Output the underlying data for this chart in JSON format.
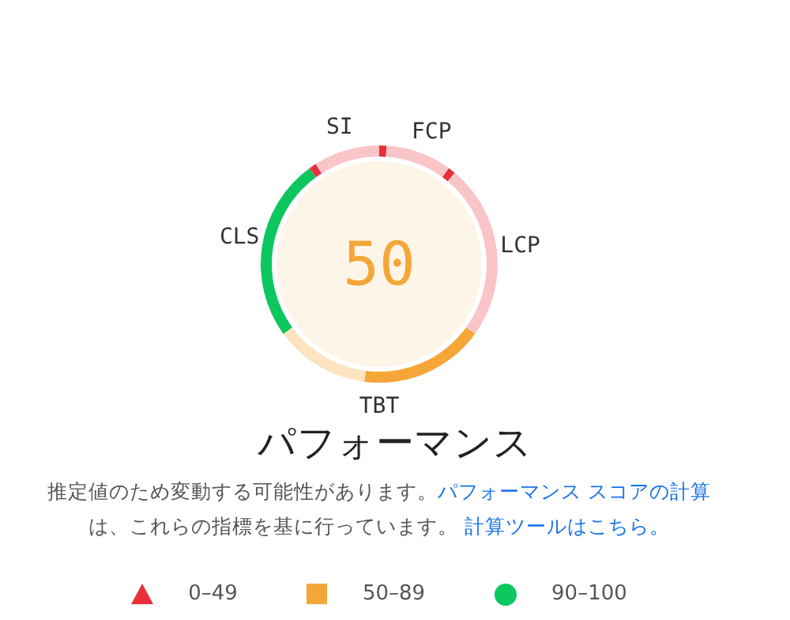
{
  "chart_data": {
    "type": "donut",
    "title": "パフォーマンス",
    "categories": [
      null,
      "FCP",
      null,
      "LCP",
      "TBT",
      null,
      "CLS",
      null,
      "SI"
    ],
    "values": [
      1,
      9,
      1,
      24,
      17,
      13,
      25,
      1,
      9
    ],
    "colors": [
      "#e8303a",
      "#f9c5c8",
      "#e8303a",
      "#f9c5c8",
      "#f5a638",
      "#fde3c0",
      "#0cc75f",
      "#e8303a",
      "#f9c5c8"
    ],
    "annotations": [
      "50",
      "推定値のため変動する可能性があります。",
      "パフォーマンス スコアの計算",
      "は、これらの指標を基に行っています。",
      "計算ツールはこちら。",
      "0–49",
      "50–89",
      "90–100"
    ]
  }
}
